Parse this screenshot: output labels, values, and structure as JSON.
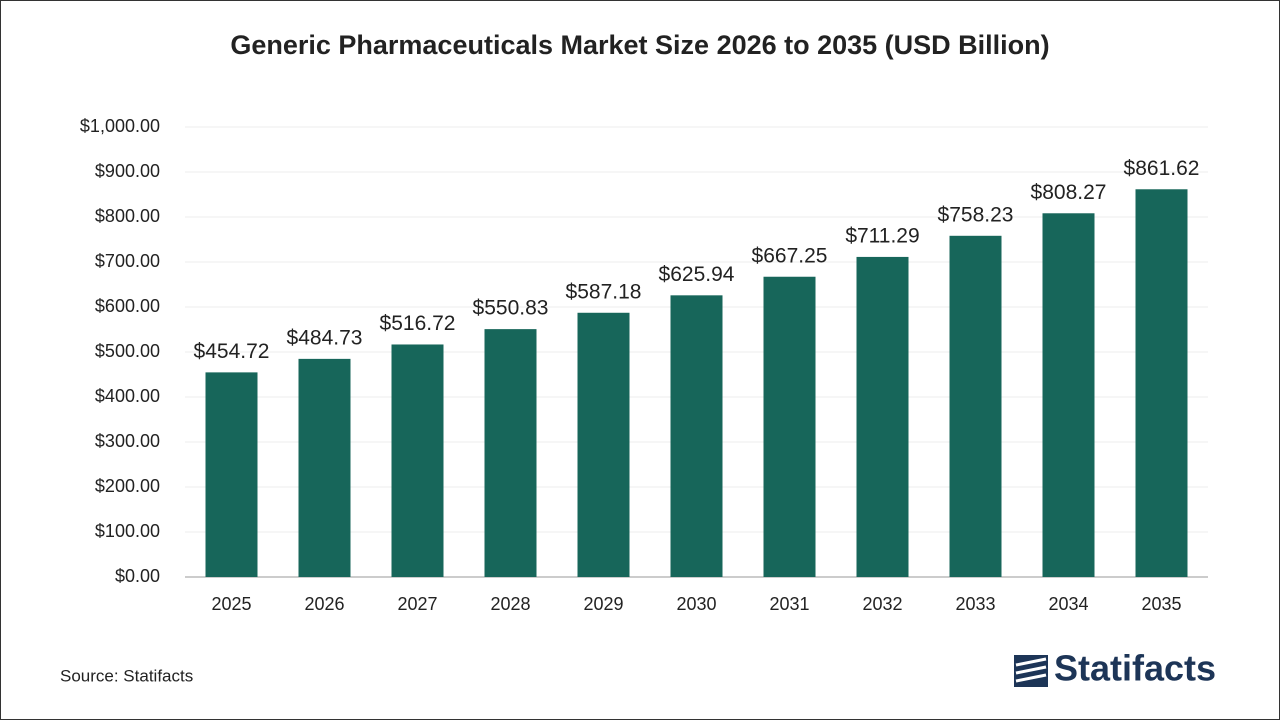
{
  "chart_data": {
    "type": "bar",
    "title": "Generic Pharmaceuticals Market Size 2026 to 2035 (USD Billion)",
    "categories": [
      "2025",
      "2026",
      "2027",
      "2028",
      "2029",
      "2030",
      "2031",
      "2032",
      "2033",
      "2034",
      "2035"
    ],
    "values": [
      454.72,
      484.73,
      516.72,
      550.83,
      587.18,
      625.94,
      667.25,
      711.29,
      758.23,
      808.27,
      861.62
    ],
    "value_labels": [
      "$454.72",
      "$484.73",
      "$516.72",
      "$550.83",
      "$587.18",
      "$625.94",
      "$667.25",
      "$711.29",
      "$758.23",
      "$808.27",
      "$861.62"
    ],
    "color": "#17665a",
    "ylim": [
      0,
      1000
    ],
    "yticks": [
      {
        "value": 0,
        "label": "$0.00"
      },
      {
        "value": 100,
        "label": "$100.00"
      },
      {
        "value": 200,
        "label": "$200.00"
      },
      {
        "value": 300,
        "label": "$300.00"
      },
      {
        "value": 400,
        "label": "$400.00"
      },
      {
        "value": 500,
        "label": "$500.00"
      },
      {
        "value": 600,
        "label": "$600.00"
      },
      {
        "value": 700,
        "label": "$700.00"
      },
      {
        "value": 800,
        "label": "$800.00"
      },
      {
        "value": 900,
        "label": "$900.00"
      },
      {
        "value": 1000,
        "label": "$1,000.00"
      }
    ],
    "grid": true,
    "source": "Source: Statifacts",
    "logo": "Statifacts"
  }
}
